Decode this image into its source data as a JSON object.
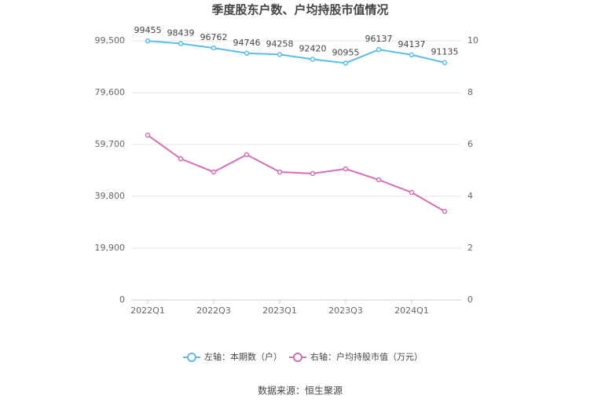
{
  "chart_data": {
    "type": "line",
    "title": "季度股东户数、户均持股市值情况",
    "categories": [
      "2022Q1",
      null,
      "2022Q3",
      null,
      "2023Q1",
      null,
      "2023Q3",
      null,
      "2024Q1",
      null
    ],
    "series": [
      {
        "name": "左轴：本期数（户）",
        "color": "#5bbdea",
        "values": [
          99455,
          98439,
          96762,
          94746,
          94258,
          92420,
          90955,
          96137,
          94137,
          91135
        ]
      },
      {
        "name": "右轴：户均持股市值（万元）",
        "color": "#d46fb4",
        "axis": "y2",
        "values": [
          6.36,
          5.45,
          4.94,
          5.61,
          4.94,
          4.88,
          5.06,
          4.64,
          4.15,
          3.42
        ]
      }
    ],
    "ylim": [
      0,
      99500
    ],
    "yticks": [
      0,
      {
        "value": 19900,
        "label": "19,900"
      },
      {
        "value": 39800,
        "label": "39,800"
      },
      {
        "value": 59700,
        "label": "59,700"
      },
      {
        "value": 79600,
        "label": "79,600"
      },
      {
        "value": 99500,
        "label": "99,500"
      }
    ],
    "y2lim": [
      0,
      10
    ],
    "y2ticks": [
      0,
      2,
      4,
      6,
      8,
      10
    ],
    "grid": true,
    "source": "数据来源：恒生聚源"
  }
}
